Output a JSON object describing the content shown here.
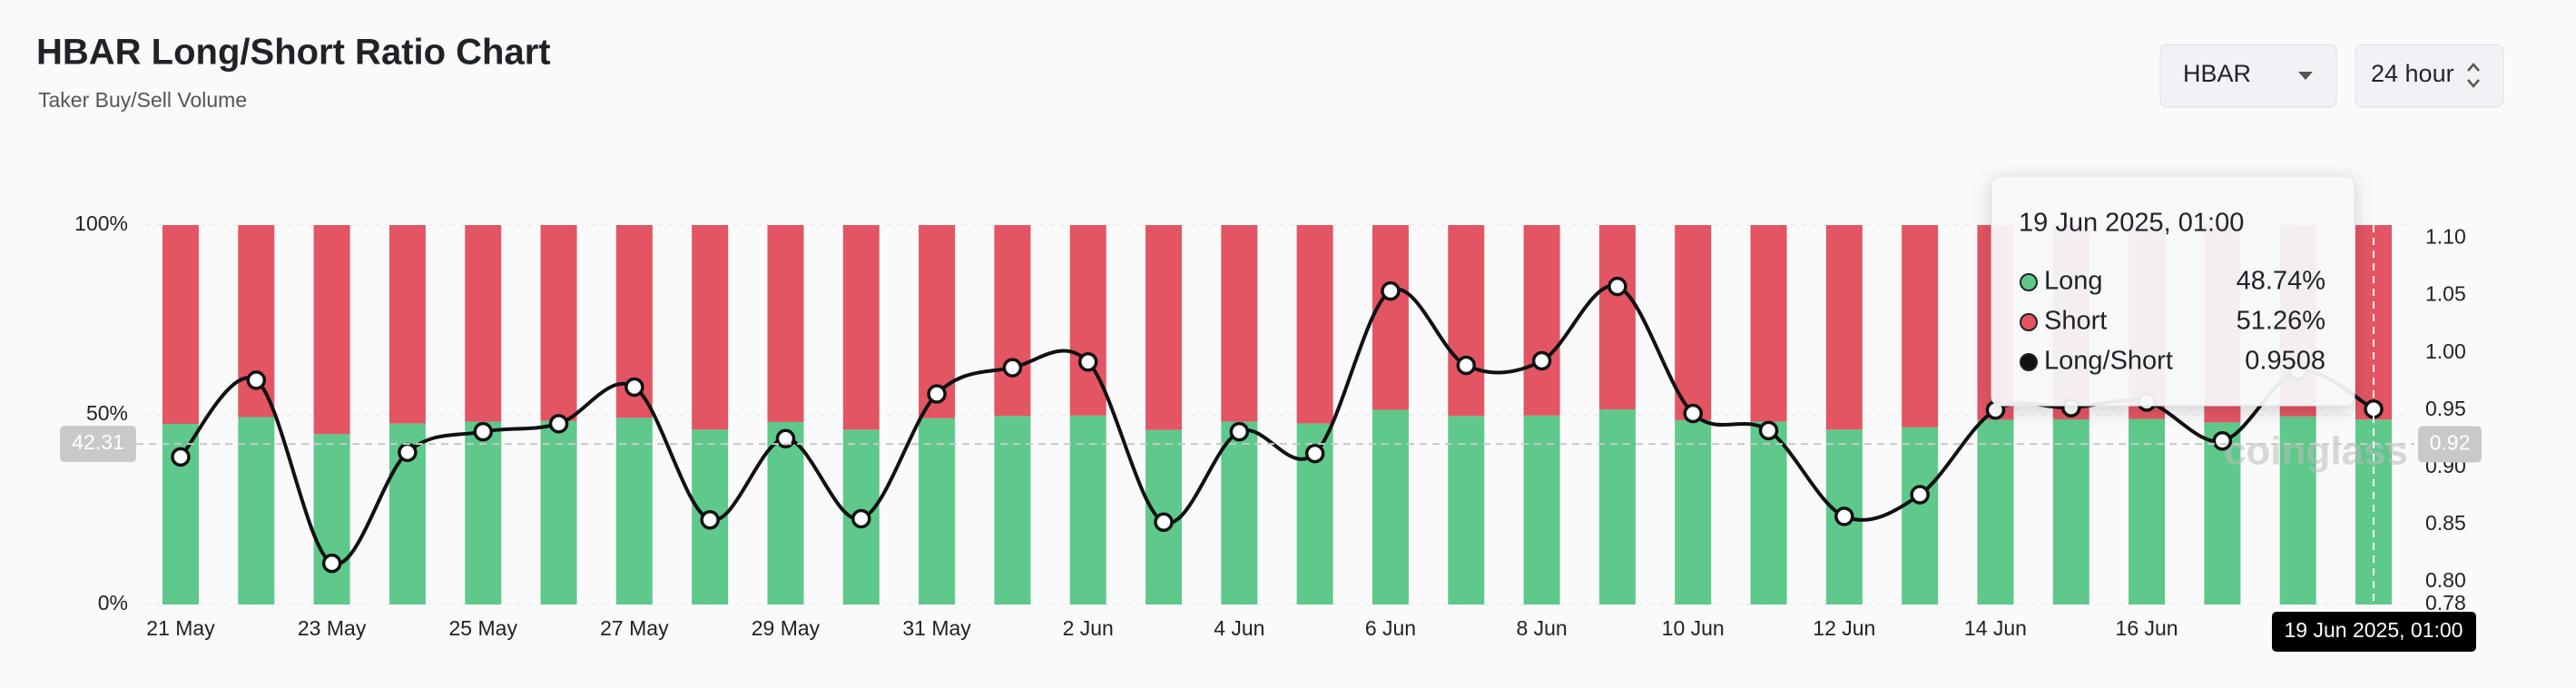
{
  "chart_data": {
    "type": "bar",
    "title": "HBAR Long/Short Ratio Chart",
    "subtitle": "Taker Buy/Sell Volume",
    "controls": {
      "symbol": "HBAR",
      "interval": "24 hour"
    },
    "watermark": "coinglass",
    "categories": [
      "21 May",
      null,
      "23 May",
      null,
      "25 May",
      null,
      "27 May",
      null,
      "29 May",
      null,
      "31 May",
      null,
      "2 Jun",
      null,
      "4 Jun",
      null,
      "6 Jun",
      null,
      "8 Jun",
      null,
      "10 Jun",
      null,
      "12 Jun",
      null,
      "14 Jun",
      null,
      "16 Jun",
      null,
      null,
      null
    ],
    "series": [
      {
        "name": "Long",
        "color": "#5ec98b",
        "values": [
          47.6,
          49.4,
          44.9,
          47.7,
          48.2,
          48.4,
          49.2,
          46.1,
          48.1,
          46.1,
          49.1,
          49.7,
          49.8,
          46.0,
          48.2,
          47.7,
          51.3,
          49.7,
          49.8,
          51.4,
          48.6,
          48.2,
          46.1,
          46.7,
          48.7,
          48.8,
          48.9,
          48.0,
          49.6,
          48.74
        ]
      },
      {
        "name": "Short",
        "color": "#e35563",
        "values": [
          52.4,
          50.6,
          55.1,
          52.3,
          51.8,
          51.6,
          50.8,
          53.9,
          51.9,
          53.9,
          50.9,
          50.3,
          50.2,
          54.0,
          51.8,
          52.3,
          48.7,
          50.3,
          50.2,
          48.6,
          51.4,
          51.8,
          53.9,
          53.3,
          51.3,
          51.2,
          51.1,
          52.0,
          50.4,
          51.26
        ]
      },
      {
        "name": "Long/Short",
        "color": "#111111",
        "type": "line",
        "axis": "y2",
        "values": [
          0.909,
          0.976,
          0.816,
          0.913,
          0.931,
          0.938,
          0.97,
          0.854,
          0.925,
          0.855,
          0.964,
          0.987,
          0.992,
          0.852,
          0.931,
          0.912,
          1.054,
          0.989,
          0.993,
          1.058,
          0.947,
          0.932,
          0.857,
          0.876,
          0.95,
          0.952,
          0.957,
          0.923,
          0.984,
          0.9508
        ]
      }
    ],
    "ylim": [
      0,
      100
    ],
    "yticks": [
      {
        "value": 0,
        "label": "0%"
      },
      {
        "value": 50,
        "label": "50%"
      },
      {
        "value": 100,
        "label": "100%"
      }
    ],
    "y2lim": [
      0.78,
      1.1116
    ],
    "y2ticks": [
      0.78,
      {
        "value": 0.8,
        "label": "0.80"
      },
      0.85,
      {
        "value": 0.9,
        "label": "0.90"
      },
      0.95,
      {
        "value": 1,
        "label": "1.00"
      },
      1.05,
      {
        "value": 1.1,
        "label": "1.10"
      }
    ],
    "grid": true,
    "crosshair": {
      "y": 42.31,
      "y2": 0.92
    },
    "tooltip": {
      "title": "19 Jun 2025, 01:00",
      "values": [
        "48.74%",
        "51.26%",
        "0.9508"
      ]
    }
  }
}
